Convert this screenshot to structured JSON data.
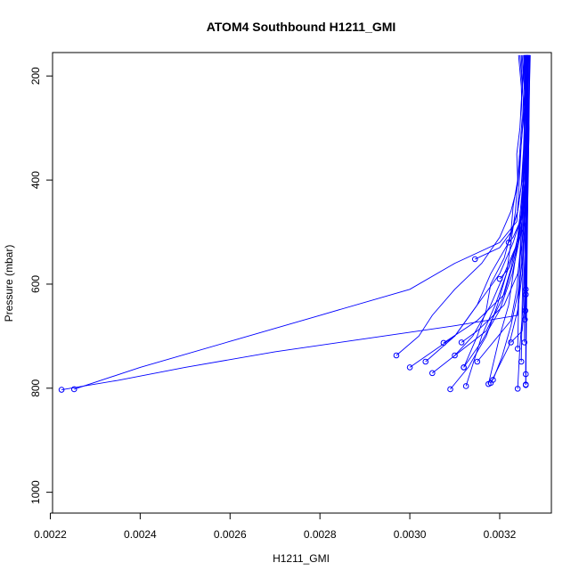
{
  "chart_data": {
    "type": "line",
    "title": "ATOM4 Southbound H1211_GMI",
    "xlabel": "H1211_GMI",
    "ylabel": "Pressure (mbar)",
    "xlim": [
      0.002205,
      0.003315
    ],
    "ylim": [
      1040,
      155
    ],
    "y_reversed": true,
    "xticks": [
      0.0022,
      0.0024,
      0.0026,
      0.0028,
      0.003,
      0.0032
    ],
    "xtick_labels": [
      "0.0022",
      "0.0024",
      "0.0026",
      "0.0028",
      "0.0030",
      "0.0032"
    ],
    "yticks": [
      200,
      400,
      600,
      800,
      1000
    ],
    "ytick_labels": [
      "200",
      "400",
      "600",
      "800",
      "1000"
    ],
    "grid": false,
    "legend": "none",
    "line_color": "#0000ff",
    "marker": "open-circle",
    "profiles": [
      {
        "x": [
          0.003255,
          0.003252,
          0.003248,
          0.003245,
          0.003238,
          0.00324,
          0.00323,
          0.003225,
          0.00321,
          0.00318,
          0.00317,
          0.00315,
          0.00312
        ],
        "y": [
          160,
          200,
          250,
          300,
          350,
          400,
          450,
          500,
          550,
          600,
          650,
          700,
          760
        ]
      },
      {
        "x": [
          0.003262,
          0.003258,
          0.003255,
          0.00325,
          0.003245,
          0.00324,
          0.003225,
          0.0032,
          0.00316,
          0.0031,
          0.00305,
          0.00302,
          0.00297
        ],
        "y": [
          160,
          210,
          260,
          310,
          360,
          410,
          460,
          510,
          560,
          610,
          660,
          700,
          737
        ]
      },
      {
        "x": [
          0.003258,
          0.003256,
          0.003252,
          0.003248,
          0.003245,
          0.003242,
          0.003238,
          0.0032,
          0.0031,
          0.003,
          0.0028,
          0.0026,
          0.0024,
          0.002253
        ],
        "y": [
          160,
          220,
          280,
          330,
          380,
          430,
          480,
          520,
          560,
          610,
          660,
          710,
          760,
          802
        ]
      },
      {
        "x": [
          0.003265,
          0.003262,
          0.00326,
          0.003258,
          0.003255,
          0.00325,
          0.003245,
          0.00324,
          0.0031,
          0.0029,
          0.0027,
          0.0025,
          0.00235,
          0.002225
        ],
        "y": [
          160,
          230,
          300,
          360,
          420,
          480,
          560,
          660,
          680,
          705,
          730,
          760,
          785,
          803
        ]
      },
      {
        "x": [
          0.003242,
          0.003248,
          0.00325,
          0.003245,
          0.00324,
          0.003235,
          0.003225,
          0.003215,
          0.003195,
          0.00317,
          0.00313,
          0.00309
        ],
        "y": [
          160,
          220,
          280,
          340,
          400,
          460,
          520,
          580,
          640,
          700,
          760,
          802
        ]
      },
      {
        "x": [
          0.003268,
          0.003266,
          0.003264,
          0.003262,
          0.00326,
          0.003255,
          0.00325,
          0.00324,
          0.00322,
          0.00318
        ],
        "y": [
          160,
          230,
          300,
          370,
          440,
          510,
          580,
          650,
          720,
          790
        ]
      },
      {
        "x": [
          0.00326,
          0.003262,
          0.003265,
          0.003262,
          0.003255,
          0.003245,
          0.003228,
          0.0032,
          0.00316,
          0.00312
        ],
        "y": [
          160,
          230,
          300,
          370,
          440,
          510,
          580,
          650,
          710,
          760
        ]
      },
      {
        "x": [
          0.00325,
          0.003255,
          0.003258,
          0.003255,
          0.003248,
          0.00324,
          0.003225,
          0.003205,
          0.00317,
          0.00305
        ],
        "y": [
          160,
          230,
          300,
          370,
          440,
          510,
          570,
          630,
          690,
          771
        ]
      },
      {
        "x": [
          0.003253,
          0.003256,
          0.003258,
          0.003256,
          0.00325,
          0.003245,
          0.00323,
          0.00321,
          0.00315,
          0.003075
        ],
        "y": [
          160,
          230,
          300,
          370,
          440,
          500,
          560,
          620,
          670,
          713
        ]
      },
      {
        "x": [
          0.003264,
          0.003262,
          0.003261,
          0.00326,
          0.003258,
          0.003255,
          0.003252,
          0.003245,
          0.00324
        ],
        "y": [
          160,
          240,
          320,
          400,
          480,
          560,
          640,
          720,
          801
        ]
      },
      {
        "x": [
          0.003257,
          0.003256,
          0.003255,
          0.003253,
          0.00325,
          0.003245,
          0.003238,
          0.003225,
          0.00315
        ],
        "y": [
          160,
          240,
          320,
          400,
          470,
          540,
          610,
          670,
          749
        ]
      },
      {
        "x": [
          0.003262,
          0.003263,
          0.003262,
          0.00326,
          0.003252,
          0.00323,
          0.0032,
          0.00315,
          0.0031,
          0.003035
        ],
        "y": [
          160,
          240,
          320,
          400,
          460,
          520,
          580,
          640,
          700,
          749
        ]
      },
      {
        "x": [
          0.003255,
          0.003256,
          0.003258,
          0.003256,
          0.00325,
          0.00324,
          0.00321,
          0.00318,
          0.00314,
          0.0031
        ],
        "y": [
          160,
          240,
          320,
          400,
          460,
          520,
          580,
          640,
          700,
          737
        ]
      },
      {
        "x": [
          0.003266,
          0.003265,
          0.003264,
          0.003262,
          0.00326,
          0.003258,
          0.003255,
          0.00325,
          0.003225
        ],
        "y": [
          160,
          240,
          320,
          400,
          480,
          560,
          640,
          690,
          712
        ]
      },
      {
        "x": [
          0.00326,
          0.003259,
          0.003258,
          0.003256,
          0.003252,
          0.003248,
          0.003242,
          0.00324
        ],
        "y": [
          160,
          240,
          320,
          400,
          480,
          560,
          640,
          724
        ]
      },
      {
        "x": [
          0.003245,
          0.003252,
          0.003256,
          0.00325,
          0.00324,
          0.00322,
          0.00318,
          0.00315,
          0.0031,
          0.003
        ],
        "y": [
          160,
          240,
          320,
          400,
          460,
          520,
          580,
          640,
          700,
          760
        ]
      },
      {
        "x": [
          0.003263,
          0.003262,
          0.003261,
          0.003258,
          0.003255,
          0.00325,
          0.00324,
          0.003225,
          0.003205,
          0.003185
        ],
        "y": [
          160,
          240,
          320,
          400,
          480,
          560,
          620,
          680,
          740,
          784
        ]
      },
      {
        "x": [
          0.003256,
          0.003257,
          0.003258,
          0.003256,
          0.00325,
          0.00324,
          0.003215,
          0.00319,
          0.00316,
          0.003125
        ],
        "y": [
          160,
          240,
          320,
          400,
          460,
          520,
          580,
          640,
          700,
          796
        ]
      },
      {
        "x": [
          0.003259,
          0.00326,
          0.003261,
          0.003259,
          0.003256,
          0.00325,
          0.00324,
          0.00321,
          0.00315,
          0.003115
        ],
        "y": [
          160,
          240,
          320,
          400,
          460,
          520,
          580,
          640,
          690,
          712
        ]
      },
      {
        "x": [
          0.003248,
          0.003252,
          0.003255,
          0.003252,
          0.003248,
          0.00324,
          0.00323,
          0.00322,
          0.0032,
          0.003175
        ],
        "y": [
          160,
          240,
          320,
          400,
          460,
          520,
          580,
          640,
          700,
          792
        ]
      },
      {
        "x": [
          0.003258,
          0.003256,
          0.003253,
          0.003248,
          0.00324,
          0.003225,
          0.0032,
          0.003145
        ],
        "y": [
          160,
          260,
          340,
          410,
          460,
          500,
          530,
          552
        ]
      },
      {
        "x": [
          0.00318
        ],
        "y": [
          155
        ],
        "nomarker": true
      },
      {
        "x": [
          0.003267,
          0.003266,
          0.003265,
          0.003263,
          0.003262,
          0.00326,
          0.003258
        ],
        "y": [
          160,
          240,
          322,
          380,
          450,
          530,
          610
        ]
      },
      {
        "x": [
          0.003262,
          0.003263,
          0.003264,
          0.003262,
          0.00326,
          0.003258,
          0.003256
        ],
        "y": [
          160,
          240,
          330,
          410,
          490,
          570,
          668
        ]
      },
      {
        "x": [
          0.003259,
          0.003262,
          0.003265,
          0.003264,
          0.003262,
          0.00326,
          0.003258
        ],
        "y": [
          160,
          240,
          300,
          380,
          460,
          540,
          620
        ]
      },
      {
        "x": [
          0.00326,
          0.003261,
          0.003262,
          0.003261,
          0.003259,
          0.003258,
          0.003257
        ],
        "y": [
          160,
          240,
          320,
          400,
          480,
          560,
          651
        ]
      },
      {
        "x": [
          0.003264,
          0.003263,
          0.003262,
          0.003261,
          0.00326,
          0.003259,
          0.003258,
          0.003258
        ],
        "y": [
          160,
          240,
          320,
          400,
          480,
          560,
          640,
          793
        ]
      },
      {
        "x": [
          0.003266,
          0.003265,
          0.003264,
          0.003263,
          0.003262,
          0.003261,
          0.00326,
          0.003258
        ],
        "y": [
          160,
          240,
          320,
          400,
          480,
          560,
          640,
          794
        ]
      },
      {
        "x": [
          0.003261,
          0.003262,
          0.003263,
          0.003262,
          0.003261,
          0.00326,
          0.003259,
          0.003258
        ],
        "y": [
          160,
          240,
          320,
          400,
          480,
          560,
          640,
          773
        ]
      },
      {
        "x": [
          0.003254,
          0.003256,
          0.003258,
          0.003256,
          0.003254,
          0.003252,
          0.00325,
          0.003248
        ],
        "y": [
          160,
          240,
          320,
          400,
          480,
          560,
          640,
          749
        ]
      },
      {
        "x": [
          0.003257,
          0.003258,
          0.003259,
          0.003258,
          0.003257,
          0.003256,
          0.003255,
          0.003255
        ],
        "y": [
          160,
          240,
          320,
          400,
          480,
          560,
          640,
          712
        ]
      },
      {
        "x": [
          0.003263,
          0.003262,
          0.003261,
          0.00326,
          0.003258,
          0.00324,
          0.00322,
          0.0032
        ],
        "y": [
          160,
          240,
          320,
          400,
          480,
          520,
          570,
          590
        ]
      },
      {
        "x": [
          0.003262,
          0.003261,
          0.00326,
          0.003259,
          0.00325,
          0.00323,
          0.00322
        ],
        "y": [
          160,
          240,
          320,
          400,
          470,
          510,
          520
        ]
      }
    ]
  }
}
